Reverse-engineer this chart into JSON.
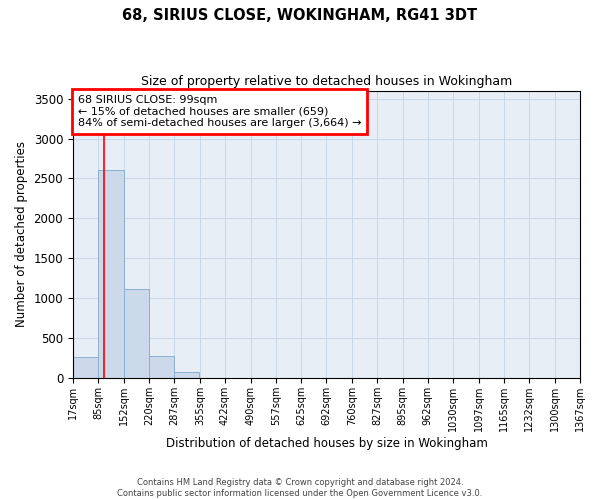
{
  "title": "68, SIRIUS CLOSE, WOKINGHAM, RG41 3DT",
  "subtitle": "Size of property relative to detached houses in Wokingham",
  "xlabel": "Distribution of detached houses by size in Wokingham",
  "ylabel": "Number of detached properties",
  "bar_left_edges": [
    17,
    85,
    152,
    220,
    287,
    355,
    422,
    490,
    557,
    625,
    692,
    760,
    827,
    895,
    962,
    1030,
    1097,
    1165,
    1232,
    1300
  ],
  "bar_heights": [
    270,
    2600,
    1120,
    280,
    75,
    10,
    5,
    0,
    0,
    0,
    0,
    0,
    0,
    0,
    0,
    0,
    0,
    0,
    0,
    0
  ],
  "bin_width": 67,
  "bar_color": "#ccd9ea",
  "bar_edge_color": "#89afd0",
  "bar_edge_width": 0.7,
  "redline_x": 99,
  "ylim": [
    0,
    3600
  ],
  "yticks": [
    0,
    500,
    1000,
    1500,
    2000,
    2500,
    3000,
    3500
  ],
  "xtick_labels": [
    "17sqm",
    "85sqm",
    "152sqm",
    "220sqm",
    "287sqm",
    "355sqm",
    "422sqm",
    "490sqm",
    "557sqm",
    "625sqm",
    "692sqm",
    "760sqm",
    "827sqm",
    "895sqm",
    "962sqm",
    "1030sqm",
    "1097sqm",
    "1165sqm",
    "1232sqm",
    "1300sqm",
    "1367sqm"
  ],
  "annotation_box_text": "68 SIRIUS CLOSE: 99sqm\n← 15% of detached houses are smaller (659)\n84% of semi-detached houses are larger (3,664) →",
  "annotation_box_color": "red",
  "annotation_box_facecolor": "white",
  "footer_line1": "Contains HM Land Registry data © Crown copyright and database right 2024.",
  "footer_line2": "Contains public sector information licensed under the Open Government Licence v3.0.",
  "grid_color": "#c8d8e8",
  "axes_background_color": "#e8eef5",
  "figure_background_color": "white"
}
